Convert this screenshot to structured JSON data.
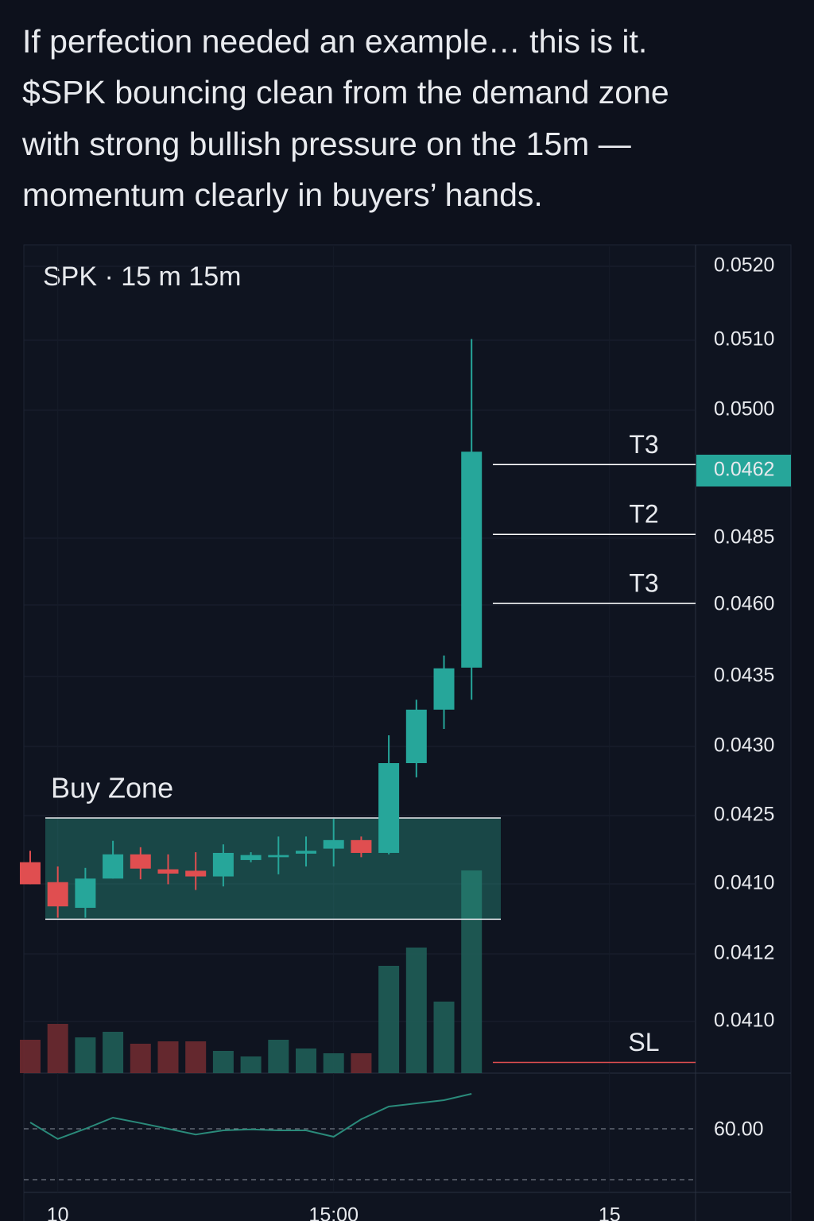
{
  "header": {
    "lines": [
      "If perfection needed an example… this is it.",
      "$SPK bouncing clean from the demand zone",
      "with strong bullish pressure on the 15m —",
      "momentum clearly in buyers’ hands."
    ]
  },
  "chart_data": {
    "type": "candlestick",
    "title": "SPK · 15 m  15m",
    "x": [
      0,
      1,
      2,
      3,
      4,
      5,
      6,
      7,
      8,
      9,
      10,
      11,
      12,
      13,
      14,
      15,
      16
    ],
    "open": [
      0.04366,
      0.04338,
      0.04302,
      0.04343,
      0.04377,
      0.04356,
      0.04354,
      0.04346,
      0.04369,
      0.04373,
      0.04378,
      0.04385,
      0.04397,
      0.04379,
      0.04505,
      0.0458,
      0.04639
    ],
    "high": [
      0.04382,
      0.0436,
      0.04358,
      0.04396,
      0.04387,
      0.04377,
      0.0438,
      0.04391,
      0.0438,
      0.04402,
      0.04402,
      0.04427,
      0.04402,
      0.04544,
      0.04594,
      0.04656,
      0.051
    ],
    "low": [
      0.04335,
      0.04288,
      0.04288,
      0.04343,
      0.04342,
      0.04335,
      0.04327,
      0.04332,
      0.04366,
      0.04349,
      0.0436,
      0.0436,
      0.04373,
      0.04377,
      0.04485,
      0.04553,
      0.04594
    ],
    "close": [
      0.04335,
      0.04304,
      0.04343,
      0.04377,
      0.04357,
      0.0435,
      0.04346,
      0.04379,
      0.04376,
      0.04376,
      0.04382,
      0.04397,
      0.04379,
      0.04505,
      0.0458,
      0.04638,
      0.04942
    ],
    "up_color": "#26a69a",
    "down_color": "#e04e50",
    "xlim": [
      -0.23,
      24.12
    ],
    "xticks": [
      {
        "value": 1,
        "label": "10"
      },
      {
        "value": 11,
        "label": "15:00"
      },
      {
        "value": 21,
        "label": "15"
      }
    ],
    "ylim": [
      0.0407,
      0.0523
    ],
    "price_axis_labels": [
      "0.0520",
      "0.0510",
      "0.0500",
      "0.0462",
      "0.0485",
      "0.0460",
      "0.0435",
      "0.0430",
      "0.0425",
      "0.0410",
      "0.0412",
      "0.0410"
    ],
    "highlighted_label": 3,
    "levels": [
      {
        "name": "T3",
        "value": 0.04924,
        "color": "#ffffff"
      },
      {
        "name": "T2",
        "value": 0.04826,
        "color": "#ffffff"
      },
      {
        "name": "T3",
        "value": 0.04729,
        "color": "#ffffff"
      },
      {
        "name": "SL",
        "value": 0.04085,
        "color": "#e04e50"
      }
    ],
    "buy_zone": {
      "label": "Buy Zone",
      "low": 0.04286,
      "high": 0.04428
    },
    "volume": [
      42,
      62,
      45,
      52,
      37,
      40,
      40,
      28,
      21,
      42,
      31,
      25,
      25,
      135,
      158,
      90,
      255
    ],
    "volume_ylim": [
      0,
      300
    ],
    "rsi": [
      62,
      56.8,
      60,
      63.5,
      61.8,
      60,
      58.2,
      59.5,
      59.8,
      59.5,
      59.5,
      57.5,
      63,
      67,
      68,
      69,
      71
    ],
    "rsi_ylim": [
      40,
      80
    ],
    "rsi_ticks": [
      {
        "value": 60,
        "label": "60.00"
      }
    ]
  }
}
